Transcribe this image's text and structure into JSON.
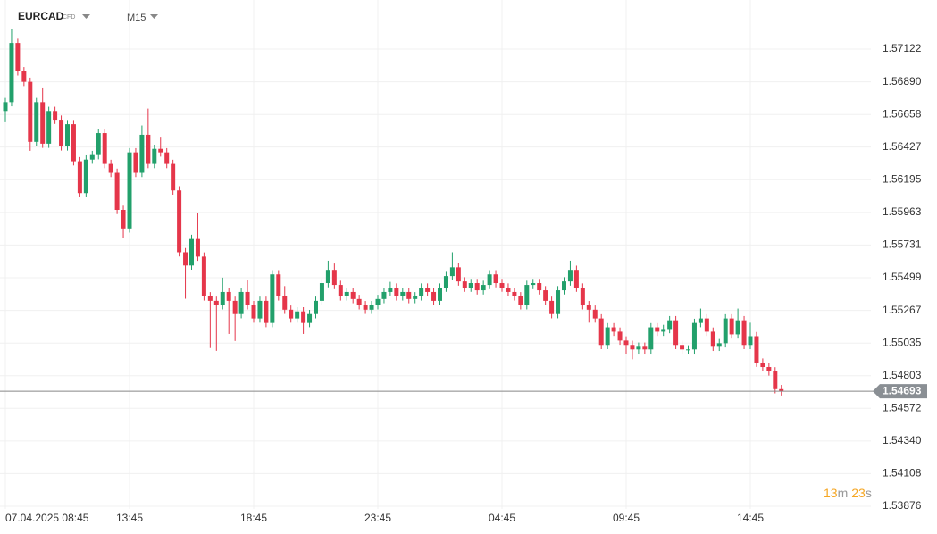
{
  "chart_data": {
    "type": "candlestick",
    "symbol": "EURCAD",
    "instrument_type": "CFD",
    "timeframe": "M15",
    "up_color": "#22a06b",
    "down_color": "#e5364a",
    "grid": true,
    "categories": [
      "07.04.2025 08:45",
      null,
      null,
      null,
      null,
      null,
      null,
      null,
      null,
      null,
      null,
      null,
      null,
      null,
      null,
      null,
      null,
      null,
      null,
      null,
      "13:45",
      null,
      null,
      null,
      null,
      null,
      null,
      null,
      null,
      null,
      null,
      null,
      null,
      null,
      null,
      null,
      null,
      null,
      null,
      null,
      "18:45",
      null,
      null,
      null,
      null,
      null,
      null,
      null,
      null,
      null,
      null,
      null,
      null,
      null,
      null,
      null,
      null,
      null,
      null,
      null,
      "23:45",
      null,
      null,
      null,
      null,
      null,
      null,
      null,
      null,
      null,
      null,
      null,
      null,
      null,
      null,
      null,
      null,
      null,
      null,
      null,
      "04:45",
      null,
      null,
      null,
      null,
      null,
      null,
      null,
      null,
      null,
      null,
      null,
      null,
      null,
      null,
      null,
      null,
      null,
      null,
      null,
      "09:45",
      null,
      null,
      null,
      null,
      null,
      null,
      null,
      null,
      null,
      null,
      null,
      null,
      null,
      null,
      null,
      null,
      null,
      null,
      null,
      "14:45",
      null,
      null,
      null,
      null,
      null
    ],
    "open": [
      1.56683,
      1.56746,
      1.57166,
      1.56965,
      1.5689,
      1.56464,
      1.56746,
      1.56451,
      1.56683,
      1.56621,
      1.56432,
      1.56589,
      1.56326,
      1.561,
      1.56338,
      1.5637,
      1.56526,
      1.56307,
      1.56244,
      1.55981,
      1.55849,
      1.56389,
      1.56244,
      1.56514,
      1.56307,
      1.56414,
      1.56389,
      1.56307,
      1.56119,
      1.5568,
      1.55586,
      1.55774,
      1.55649,
      1.55367,
      1.55335,
      1.55304,
      1.55398,
      1.55335,
      1.55241,
      1.55398,
      1.55304,
      1.5521,
      1.55335,
      1.55178,
      1.55523,
      1.55367,
      1.55272,
      1.5521,
      1.5526,
      1.55178,
      1.55241,
      1.55335,
      1.55461,
      1.55555,
      1.55448,
      1.55367,
      1.55398,
      1.55348,
      1.55304,
      1.55272,
      1.55304,
      1.55348,
      1.55398,
      1.55429,
      1.55367,
      1.55398,
      1.55348,
      1.55367,
      1.55429,
      1.55398,
      1.55335,
      1.55429,
      1.55511,
      1.55573,
      1.55473,
      1.55429,
      1.55461,
      1.5541,
      1.55448,
      1.55523,
      1.55461,
      1.55429,
      1.55398,
      1.55367,
      1.55304,
      1.55448,
      1.55461,
      1.5541,
      1.55335,
      1.55241,
      1.5541,
      1.55473,
      1.55555,
      1.55429,
      1.55304,
      1.55272,
      1.5521,
      1.55022,
      1.55147,
      1.55116,
      1.55053,
      1.55022,
      1.5499,
      1.55009,
      1.5499,
      1.55147,
      1.55116,
      1.55135,
      1.55197,
      1.55022,
      1.5499,
      1.5499,
      1.55178,
      1.5521,
      1.55116,
      1.55009,
      1.55034,
      1.5521,
      1.55097,
      1.55197,
      1.55022,
      1.55084,
      1.54896,
      1.54865,
      1.54834,
      1.54708
    ],
    "high": [
      1.56776,
      1.57265,
      1.57196,
      1.56995,
      1.5692,
      1.56776,
      1.5685,
      1.56713,
      1.56713,
      1.56651,
      1.56619,
      1.56619,
      1.56356,
      1.56368,
      1.564,
      1.56556,
      1.56556,
      1.56337,
      1.56274,
      1.56011,
      1.56419,
      1.56419,
      1.5658,
      1.567,
      1.56444,
      1.565,
      1.56419,
      1.56337,
      1.56149,
      1.5571,
      1.55804,
      1.5596,
      1.55679,
      1.55397,
      1.55365,
      1.555,
      1.55428,
      1.55365,
      1.55428,
      1.5548,
      1.55334,
      1.55365,
      1.55365,
      1.55553,
      1.55553,
      1.5544,
      1.55302,
      1.5529,
      1.5529,
      1.55271,
      1.55365,
      1.55491,
      1.5562,
      1.556,
      1.55478,
      1.55428,
      1.55428,
      1.55378,
      1.55334,
      1.55334,
      1.55378,
      1.55428,
      1.5547,
      1.55459,
      1.55428,
      1.55428,
      1.55397,
      1.55459,
      1.55459,
      1.55428,
      1.55459,
      1.55541,
      1.5568,
      1.55603,
      1.55503,
      1.55491,
      1.55491,
      1.55478,
      1.55553,
      1.55553,
      1.55491,
      1.55459,
      1.55428,
      1.55397,
      1.55478,
      1.55491,
      1.55491,
      1.5544,
      1.55365,
      1.5544,
      1.55503,
      1.5562,
      1.55585,
      1.55459,
      1.55334,
      1.55302,
      1.5524,
      1.55177,
      1.55177,
      1.55146,
      1.55083,
      1.55052,
      1.55039,
      1.55039,
      1.55177,
      1.55177,
      1.55165,
      1.55227,
      1.55227,
      1.55052,
      1.5502,
      1.55208,
      1.5528,
      1.5524,
      1.55146,
      1.55064,
      1.5524,
      1.5524,
      1.5528,
      1.55227,
      1.5518,
      1.55114,
      1.54926,
      1.54895,
      1.54864,
      1.54738
    ],
    "low": [
      1.56603,
      1.56716,
      1.56935,
      1.5686,
      1.564,
      1.56434,
      1.56421,
      1.56421,
      1.56591,
      1.56402,
      1.56402,
      1.56296,
      1.5607,
      1.5607,
      1.56308,
      1.5634,
      1.56277,
      1.56214,
      1.55951,
      1.5578,
      1.55819,
      1.56214,
      1.56214,
      1.56277,
      1.56277,
      1.56359,
      1.56277,
      1.56089,
      1.5565,
      1.5535,
      1.55556,
      1.55619,
      1.55337,
      1.55,
      1.5498,
      1.55274,
      1.551,
      1.5505,
      1.55211,
      1.55274,
      1.5518,
      1.5518,
      1.55148,
      1.55148,
      1.55337,
      1.55242,
      1.5518,
      1.5518,
      1.551,
      1.55148,
      1.55211,
      1.55305,
      1.55431,
      1.55418,
      1.55337,
      1.55337,
      1.55318,
      1.55274,
      1.55242,
      1.55242,
      1.55274,
      1.55318,
      1.55368,
      1.55337,
      1.55337,
      1.55318,
      1.55318,
      1.55337,
      1.55368,
      1.55305,
      1.55305,
      1.55399,
      1.55481,
      1.55443,
      1.55399,
      1.55399,
      1.5538,
      1.5538,
      1.55418,
      1.55431,
      1.55399,
      1.55368,
      1.55337,
      1.55274,
      1.55274,
      1.55418,
      1.5538,
      1.55305,
      1.55211,
      1.55211,
      1.5538,
      1.55443,
      1.55399,
      1.55274,
      1.5518,
      1.5518,
      1.54992,
      1.54992,
      1.55086,
      1.55023,
      1.5496,
      1.5492,
      1.5496,
      1.5496,
      1.5496,
      1.55086,
      1.55086,
      1.55105,
      1.54992,
      1.5496,
      1.5496,
      1.5496,
      1.55148,
      1.55086,
      1.54979,
      1.54979,
      1.55004,
      1.55067,
      1.55067,
      1.54992,
      1.54992,
      1.54866,
      1.54835,
      1.54804,
      1.54678,
      1.54663
    ],
    "close": [
      1.56746,
      1.57166,
      1.56965,
      1.5689,
      1.56464,
      1.56746,
      1.56451,
      1.56683,
      1.56621,
      1.56432,
      1.56589,
      1.56326,
      1.561,
      1.56338,
      1.5637,
      1.56526,
      1.56307,
      1.56244,
      1.55981,
      1.55849,
      1.56389,
      1.56244,
      1.56514,
      1.56307,
      1.56414,
      1.56389,
      1.56307,
      1.56119,
      1.5568,
      1.55586,
      1.55774,
      1.55649,
      1.55367,
      1.55335,
      1.55304,
      1.55398,
      1.55335,
      1.55241,
      1.55398,
      1.55304,
      1.5521,
      1.55335,
      1.55178,
      1.55523,
      1.55367,
      1.55272,
      1.5521,
      1.5526,
      1.55178,
      1.55241,
      1.55335,
      1.55461,
      1.55555,
      1.55448,
      1.55367,
      1.55398,
      1.55348,
      1.55304,
      1.55272,
      1.55304,
      1.55348,
      1.55398,
      1.55429,
      1.55367,
      1.55398,
      1.55348,
      1.55367,
      1.55429,
      1.55398,
      1.55335,
      1.55429,
      1.55511,
      1.55573,
      1.55473,
      1.55429,
      1.55461,
      1.5541,
      1.55448,
      1.55523,
      1.55461,
      1.55429,
      1.55398,
      1.55367,
      1.55304,
      1.55448,
      1.55461,
      1.5541,
      1.55335,
      1.55241,
      1.5541,
      1.55473,
      1.55555,
      1.55429,
      1.55304,
      1.55272,
      1.5521,
      1.55022,
      1.55147,
      1.55116,
      1.55053,
      1.55022,
      1.5499,
      1.55009,
      1.5499,
      1.55147,
      1.55116,
      1.55135,
      1.55197,
      1.55022,
      1.5499,
      1.5499,
      1.55178,
      1.5521,
      1.55116,
      1.55009,
      1.55034,
      1.5521,
      1.55097,
      1.55197,
      1.55022,
      1.55084,
      1.54896,
      1.54865,
      1.54834,
      1.54708,
      1.54693
    ],
    "current_price": 1.54693,
    "countdown": {
      "minutes": "13",
      "minutes_unit": "m",
      "seconds": "23",
      "seconds_unit": "s"
    },
    "ylim": [
      1.53857,
      1.57471
    ],
    "yticks": [
      1.57122,
      {
        "value": 1.5689,
        "label": "1.56890"
      },
      1.56658,
      1.56427,
      1.56195,
      1.55963,
      1.55731,
      1.55499,
      1.55267,
      1.55035,
      1.54803,
      1.54572,
      {
        "value": 1.5434,
        "label": "1.54340"
      },
      1.54108,
      1.53876
    ]
  }
}
